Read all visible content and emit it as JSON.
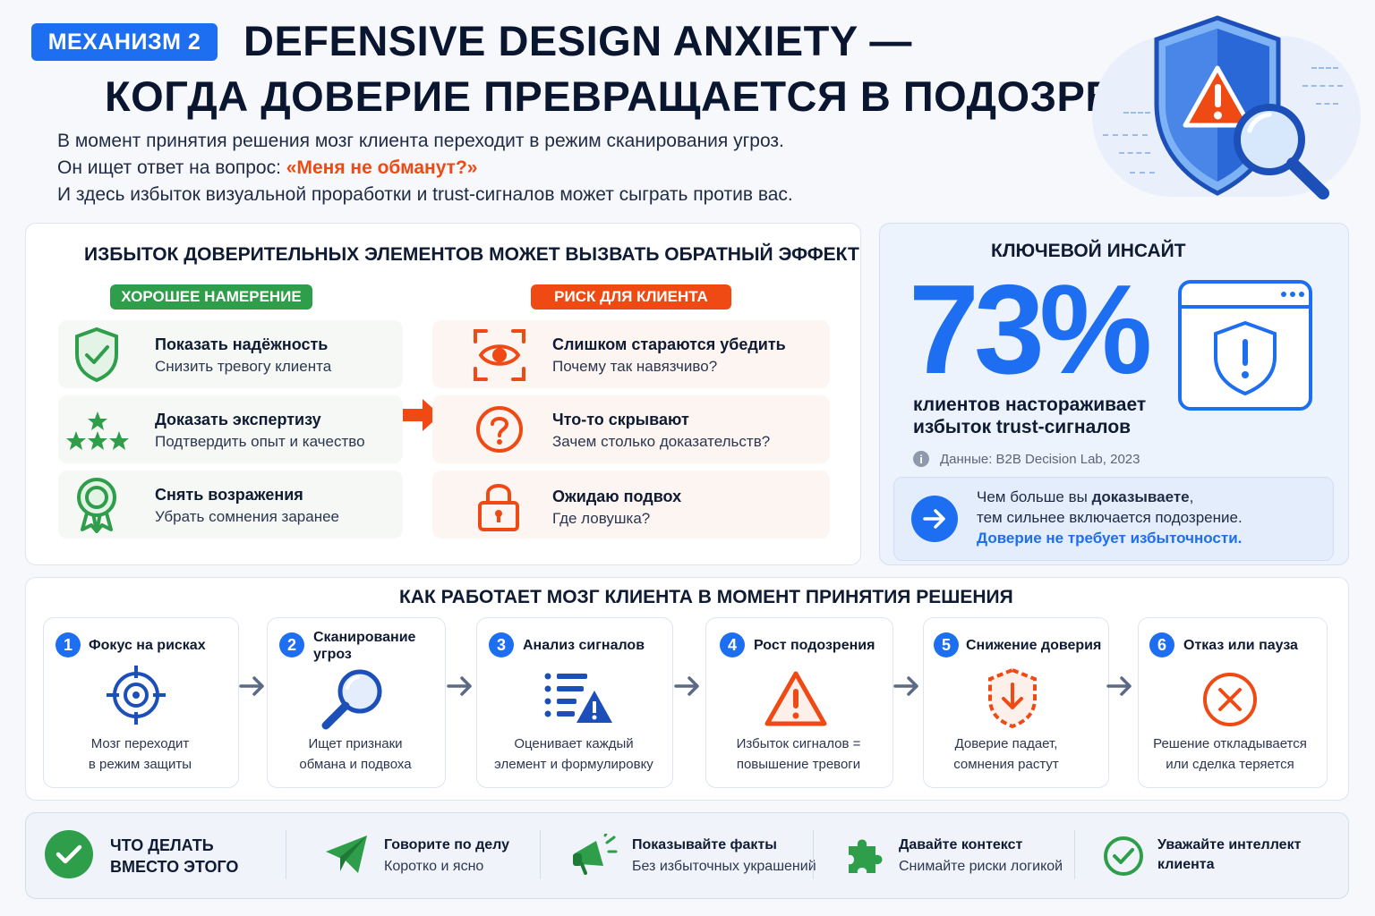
{
  "header": {
    "badge": "МЕХАНИЗМ 2",
    "title_line1": "DEFENSIVE DESIGN ANXIETY —",
    "title_line2": "КОГДА ДОВЕРИЕ ПРЕВРАЩАЕТСЯ В ПОДОЗРЕНИЕ",
    "intro_line1": "В момент принятия решения мозг клиента переходит в режим сканирования угроз.",
    "intro_line2_prefix": "Он ищет ответ на вопрос: ",
    "intro_line2_highlight": "«Меня не обманут?»",
    "intro_line3": "И здесь избыток визуальной проработки и trust-сигналов может сыграть против вас."
  },
  "excess": {
    "title": "ИЗБЫТОК ДОВЕРИТЕЛЬНЫХ ЭЛЕМЕНТОВ МОЖЕТ ВЫЗВАТЬ ОБРАТНЫЙ ЭФФЕКТ",
    "good_label": "ХОРОШЕЕ НАМЕРЕНИЕ",
    "risk_label": "РИСК ДЛЯ КЛИЕНТА",
    "good": [
      {
        "title": "Показать надёжность",
        "sub": "Снизить тревогу клиента",
        "icon": "shield-check-icon"
      },
      {
        "title": "Доказать экспертизу",
        "sub": "Подтвердить опыт и качество",
        "icon": "stars-icon"
      },
      {
        "title": "Снять возражения",
        "sub": "Убрать сомнения заранее",
        "icon": "award-icon"
      }
    ],
    "risk": [
      {
        "title": "Слишком стараются убедить",
        "sub": "Почему так навязчиво?",
        "icon": "eye-scan-icon"
      },
      {
        "title": "Что-то скрывают",
        "sub": "Зачем столько доказательств?",
        "icon": "question-icon"
      },
      {
        "title": "Ожидаю подвох",
        "sub": "Где ловушка?",
        "icon": "lock-icon"
      }
    ]
  },
  "insight": {
    "title": "КЛЮЧЕВОЙ ИНСАЙТ",
    "value": "73%",
    "text_line1": "клиентов настораживает",
    "text_line2": "избыток trust-сигналов",
    "source": "Данные: B2B Decision Lab, 2023",
    "callout_line1_prefix": "Чем больше вы ",
    "callout_line1_bold": "доказываете",
    "callout_line1_suffix": ",",
    "callout_line2": "тем сильнее включается подозрение.",
    "callout_line3": "Доверие не требует избыточности."
  },
  "process": {
    "title": "КАК РАБОТАЕТ МОЗГ КЛИЕНТА В МОМЕНТ ПРИНЯТИЯ РЕШЕНИЯ",
    "steps": [
      {
        "num": "1",
        "title": "Фокус на рисках",
        "desc1": "Мозг переходит",
        "desc2": "в режим защиты",
        "icon": "target-icon"
      },
      {
        "num": "2",
        "title": "Сканирование угроз",
        "desc1": "Ищет признаки",
        "desc2": "обмана и подвоха",
        "icon": "magnifier-icon"
      },
      {
        "num": "3",
        "title": "Анализ сигналов",
        "desc1": "Оценивает каждый",
        "desc2": "элемент и формулировку",
        "icon": "list-warning-icon"
      },
      {
        "num": "4",
        "title": "Рост подозрения",
        "desc1": "Избыток сигналов =",
        "desc2": "повышение тревоги",
        "icon": "warning-triangle-icon"
      },
      {
        "num": "5",
        "title": "Снижение доверия",
        "desc1": "Доверие падает,",
        "desc2": "сомнения растут",
        "icon": "shield-down-icon"
      },
      {
        "num": "6",
        "title": "Отказ или пауза",
        "desc1": "Решение откладывается",
        "desc2": "или сделка теряется",
        "icon": "cancel-circle-icon"
      }
    ]
  },
  "todo": {
    "title_line1": "ЧТО ДЕЛАТЬ",
    "title_line2": "ВМЕСТО ЭТОГО",
    "items": [
      {
        "title": "Говорите по делу",
        "sub": "Коротко и ясно",
        "icon": "send-icon"
      },
      {
        "title": "Показывайте факты",
        "sub": "Без избыточных украшений",
        "icon": "megaphone-icon"
      },
      {
        "title": "Давайте контекст",
        "sub": "Снимайте риски логикой",
        "icon": "puzzle-icon"
      },
      {
        "title": "Уважайте интеллект",
        "sub": "клиента",
        "icon": "check-circle-icon"
      }
    ]
  },
  "colors": {
    "accent": "#1d6ef0",
    "good": "#2e9e4a",
    "risk": "#f04a14",
    "text": "#0f1b33"
  }
}
